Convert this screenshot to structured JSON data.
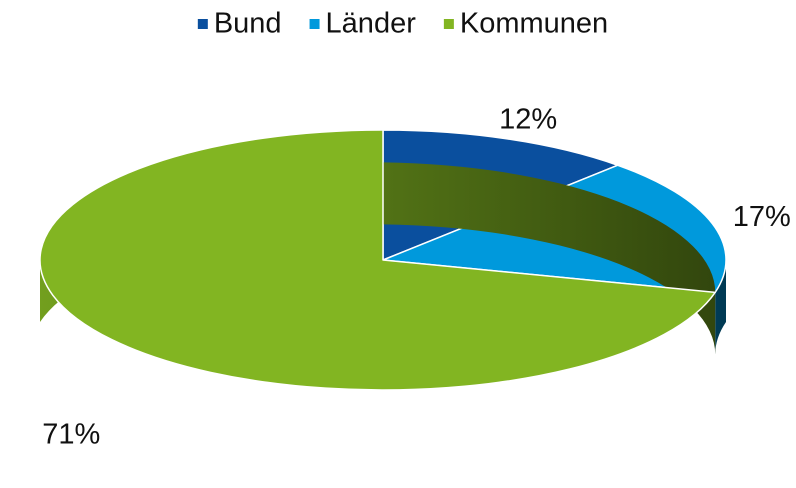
{
  "chart_data": {
    "type": "pie",
    "categories": [
      "Bund",
      "Länder",
      "Kommunen"
    ],
    "values": [
      12,
      17,
      71
    ],
    "value_labels": [
      "12%",
      "17%",
      "71%"
    ],
    "colors": [
      "#0a4f9e",
      "#0099dc",
      "#82b522"
    ],
    "legend": "top"
  }
}
